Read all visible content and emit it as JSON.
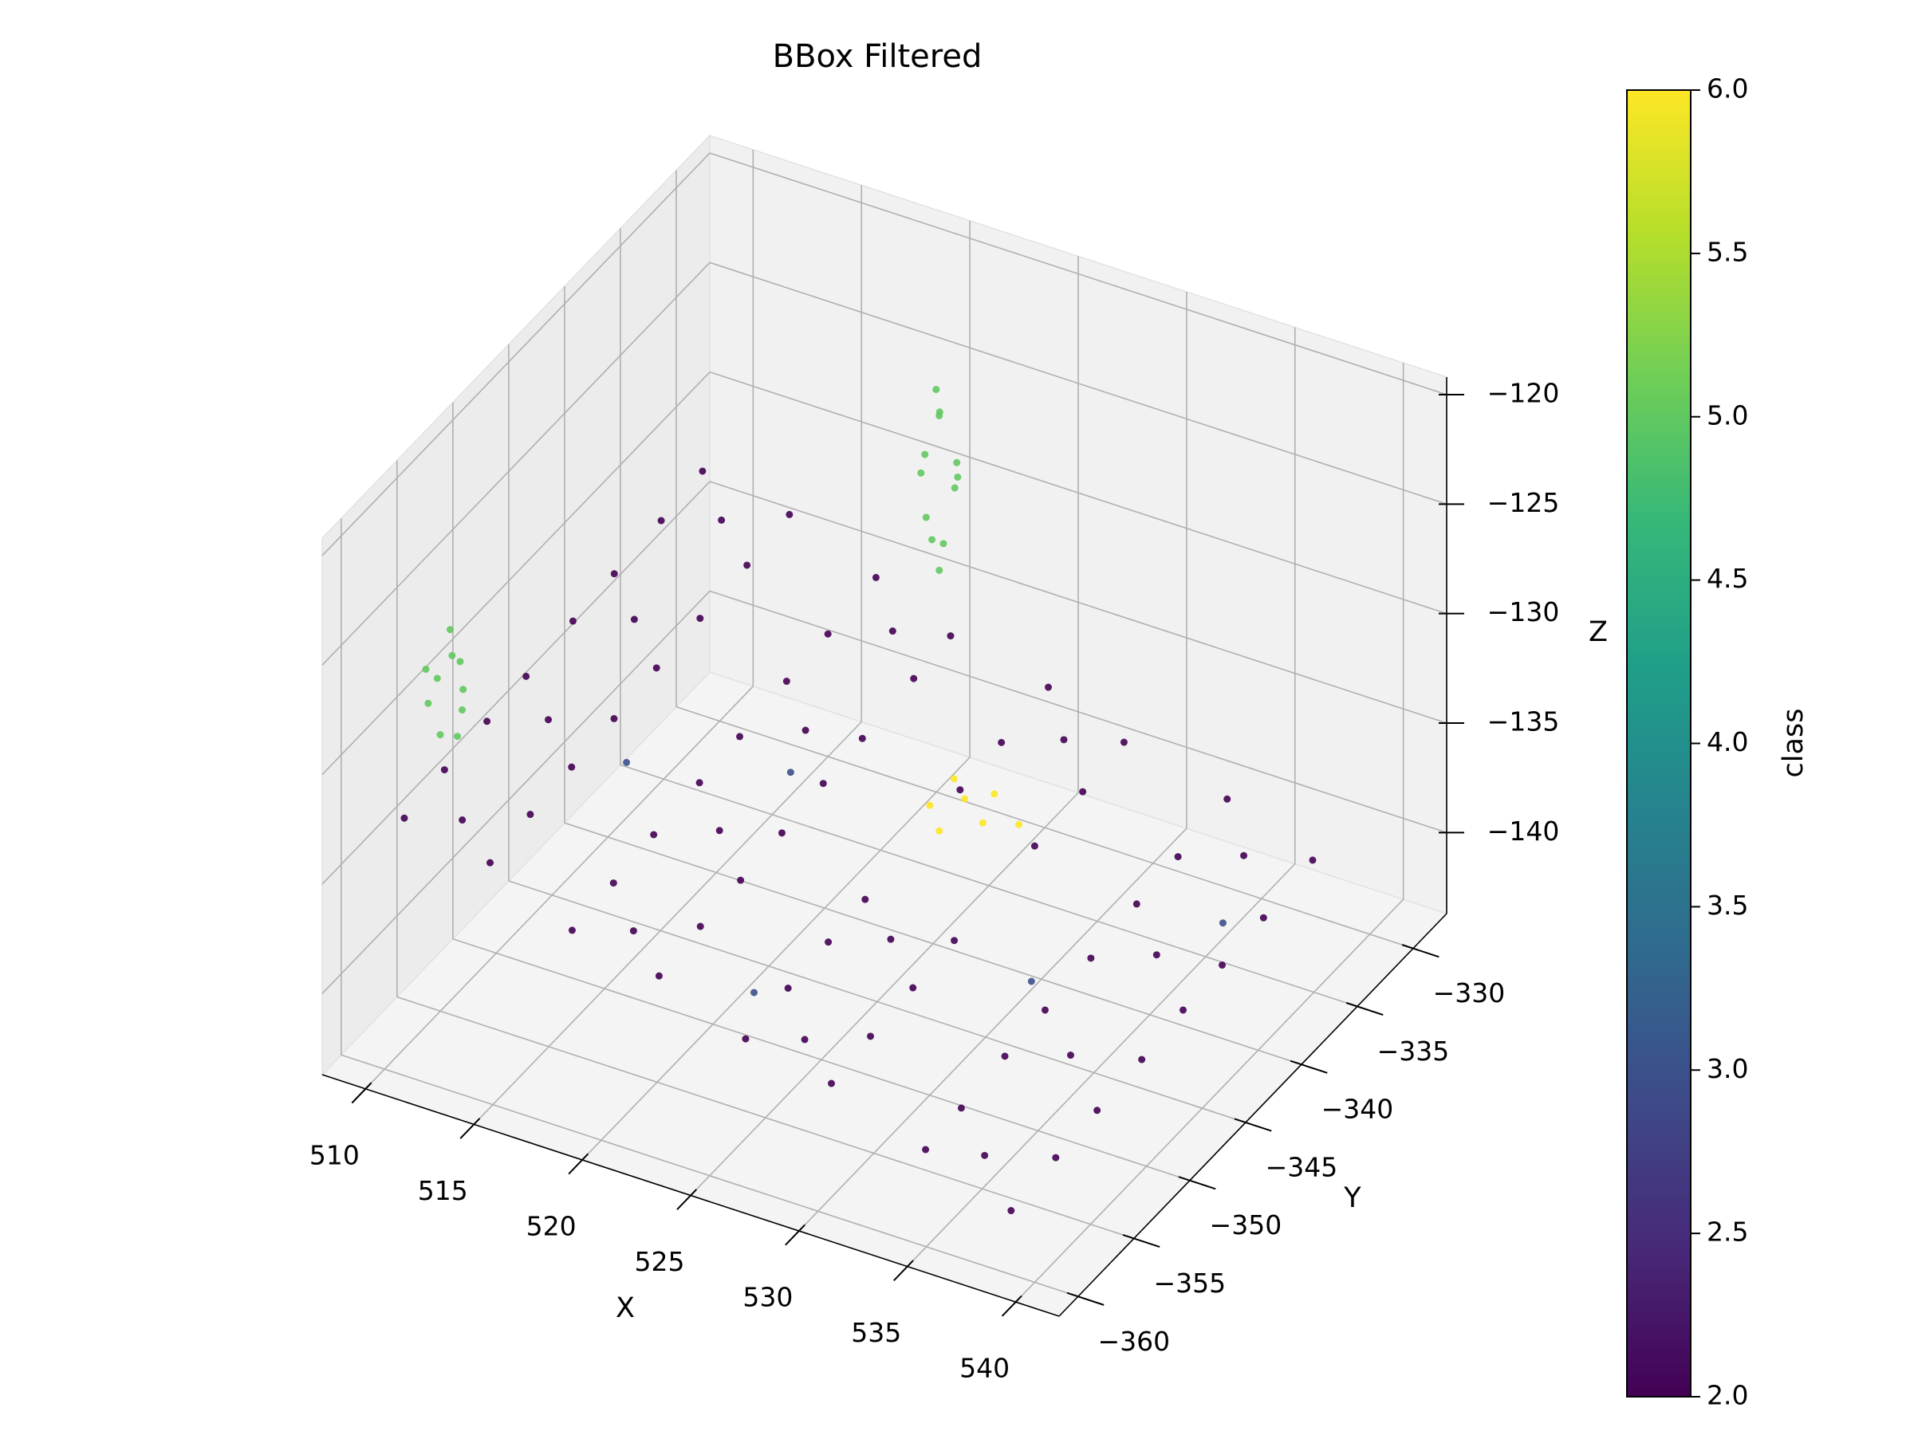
{
  "chart_data": {
    "type": "scatter3d",
    "title": "BBox Filtered",
    "xlabel": "X",
    "ylabel": "Y",
    "zlabel": "Z",
    "colorbar_label": "class",
    "cmap": "viridis",
    "xlim": [
      508,
      542
    ],
    "ylim": [
      -361.7,
      -327
    ],
    "zlim": [
      -143.7,
      -119.2
    ],
    "clim": [
      2,
      6
    ],
    "xticks": [
      510,
      515,
      520,
      525,
      530,
      535,
      540
    ],
    "yticks": [
      {
        "value": -360,
        "label": "−360"
      },
      {
        "value": -355,
        "label": "−355"
      },
      {
        "value": -350,
        "label": "−350"
      },
      {
        "value": -345,
        "label": "−345"
      },
      {
        "value": -340,
        "label": "−340"
      },
      {
        "value": -335,
        "label": "−335"
      },
      {
        "value": -330,
        "label": "−330"
      }
    ],
    "zticks": [
      {
        "value": -140,
        "label": "−140"
      },
      {
        "value": -135,
        "label": "−135"
      },
      {
        "value": -130,
        "label": "−130"
      },
      {
        "value": -125,
        "label": "−125"
      },
      {
        "value": -120,
        "label": "−120"
      }
    ],
    "cticks": [
      {
        "value": 2,
        "label": "2.0"
      },
      2.5,
      {
        "value": 3,
        "label": "3.0"
      },
      3.5,
      {
        "value": 4,
        "label": "4.0"
      },
      4.5,
      {
        "value": 5,
        "label": "5.0"
      },
      5.5,
      {
        "value": 6,
        "label": "6.0"
      }
    ],
    "grid": true,
    "points": {
      "x": [
        510.5,
        510.5,
        510.5,
        510.5,
        510.5,
        510.5,
        510.5,
        510.5,
        514.2,
        514.2,
        514.2,
        514.2,
        514.2,
        514.2,
        514.2,
        514.2,
        518.4,
        518.4,
        518.4,
        518.4,
        518.4,
        518.4,
        518.4,
        518.4,
        522.1,
        522.1,
        522.1,
        522.1,
        522.1,
        522.1,
        522.1,
        522.1,
        526.3,
        526.3,
        526.3,
        526.3,
        526.3,
        526.3,
        526.3,
        530.0,
        530.0,
        530.0,
        530.0,
        530.0,
        530.0,
        530.0,
        534.5,
        534.5,
        534.5,
        534.5,
        534.5,
        534.5,
        534.5,
        534.5,
        538.6,
        538.6,
        538.6,
        538.6,
        538.6,
        538.6,
        538.6,
        538.6,
        512.3,
        512.3,
        512.3,
        512.3,
        520.2,
        520.2,
        520.2,
        520.2,
        528.1,
        528.1,
        528.1,
        536.4,
        536.4,
        536.4,
        536.4,
        526.5,
        527.8,
        529.1,
        526.9,
        528.6,
        530.2,
        527.4,
        510.2,
        510.8,
        509.9,
        511.1,
        510.5,
        510.0,
        510.9,
        510.4,
        511.3,
        509.6,
        522.3,
        521.6,
        522.8,
        521.9,
        522.5,
        521.4,
        522.9,
        522.1,
        521.7,
        522.4,
        522.0,
        523.2,
        533.2,
        525.4,
        515.6,
        537.5,
        520.8
      ],
      "y": [
        -359.2,
        -355.6,
        -351.8,
        -348.3,
        -344.1,
        -340.4,
        -336.2,
        -332.5,
        -358.7,
        -355.1,
        -351.4,
        -347.6,
        -343.8,
        -339.9,
        -335.7,
        -331.9,
        -359.5,
        -355.8,
        -352.2,
        -348.1,
        -344.5,
        -340.3,
        -336.6,
        -332.3,
        -358.9,
        -355.2,
        -351.6,
        -347.9,
        -344.2,
        -340.7,
        -336.1,
        -332.8,
        -359.3,
        -355.5,
        -351.9,
        -348.6,
        -340.1,
        -336.4,
        -332.2,
        -358.8,
        -355.3,
        -351.5,
        -347.8,
        -340.6,
        -336.3,
        -332.6,
        -359.1,
        -355.9,
        -352.0,
        -348.4,
        -344.3,
        -340.2,
        -336.5,
        -332.1,
        -359.4,
        -355.4,
        -351.7,
        -347.7,
        -344.0,
        -340.5,
        -336.8,
        -332.4,
        -357.5,
        -349.8,
        -342.1,
        -334.3,
        -357.5,
        -349.8,
        -342.1,
        -334.3,
        -357.5,
        -349.8,
        -334.3,
        -357.5,
        -349.8,
        -342.1,
        -334.3,
        -343.2,
        -342.6,
        -343.5,
        -341.8,
        -341.5,
        -342.4,
        -344.1,
        -355.4,
        -354.6,
        -355.9,
        -355.1,
        -354.2,
        -356.3,
        -355.7,
        -354.9,
        -356.0,
        -354.5,
        -334.2,
        -333.5,
        -334.8,
        -334.6,
        -333.2,
        -334.1,
        -333.8,
        -335.1,
        -333.0,
        -334.4,
        -333.9,
        -334.3,
        -347.1,
        -356.8,
        -349.2,
        -338.3,
        -344.6
      ],
      "z": [
        -132.5,
        -132.2,
        -132.0,
        -131.8,
        -131.5,
        -131.3,
        -131.1,
        -130.8,
        -133.6,
        -133.3,
        -133.1,
        -132.9,
        -132.6,
        -132.4,
        -132.2,
        -131.9,
        -134.9,
        -134.7,
        -134.4,
        -134.2,
        -134.0,
        -133.7,
        -133.5,
        -133.2,
        -136.1,
        -135.8,
        -135.6,
        -135.4,
        -135.1,
        -134.9,
        -134.6,
        -134.4,
        -137.4,
        -137.1,
        -136.9,
        -136.7,
        -136.2,
        -136.0,
        -135.7,
        -138.5,
        -138.2,
        -138.0,
        -137.8,
        -137.3,
        -137.1,
        -136.8,
        -139.9,
        -139.7,
        -139.4,
        -139.2,
        -139.0,
        -138.7,
        -138.5,
        -138.2,
        -141.2,
        -140.9,
        -140.7,
        -140.5,
        -140.2,
        -140.0,
        -139.8,
        -139.5,
        -132.9,
        -132.4,
        -131.9,
        -131.5,
        -135.4,
        -134.9,
        -134.4,
        -134.0,
        -137.8,
        -137.3,
        -136.4,
        -140.4,
        -139.9,
        -139.4,
        -139.0,
        -135.2,
        -134.8,
        -135.0,
        -134.6,
        -134.9,
        -135.3,
        -135.6,
        -130.8,
        -129.9,
        -129.2,
        -128.6,
        -128.0,
        -127.4,
        -126.8,
        -126.2,
        -130.2,
        -128.9,
        -130.6,
        -129.8,
        -128.9,
        -128.1,
        -127.3,
        -126.5,
        -125.7,
        -124.9,
        -124.2,
        -123.4,
        -122.6,
        -126.0,
        -139.0,
        -136.9,
        -133.6,
        -139.6,
        -134.8
      ],
      "class": [
        2,
        2,
        2,
        2,
        2,
        2,
        2,
        2,
        2,
        2,
        2,
        2,
        2,
        2,
        2,
        2,
        2,
        2,
        2,
        2,
        2,
        2,
        2,
        2,
        2,
        2,
        2,
        2,
        2,
        2,
        2,
        2,
        2,
        2,
        2,
        2,
        2,
        2,
        2,
        2,
        2,
        2,
        2,
        2,
        2,
        2,
        2,
        2,
        2,
        2,
        2,
        2,
        2,
        2,
        2,
        2,
        2,
        2,
        2,
        2,
        2,
        2,
        2,
        2,
        2,
        2,
        2,
        2,
        2,
        2,
        2,
        2,
        2,
        2,
        2,
        2,
        2,
        6,
        6,
        6,
        6,
        6,
        6,
        6,
        5,
        5,
        5,
        5,
        5,
        5,
        5,
        5,
        5,
        5,
        5,
        5,
        5,
        5,
        5,
        5,
        5,
        5,
        5,
        5,
        5,
        5,
        3,
        3,
        3,
        3,
        3
      ]
    }
  }
}
